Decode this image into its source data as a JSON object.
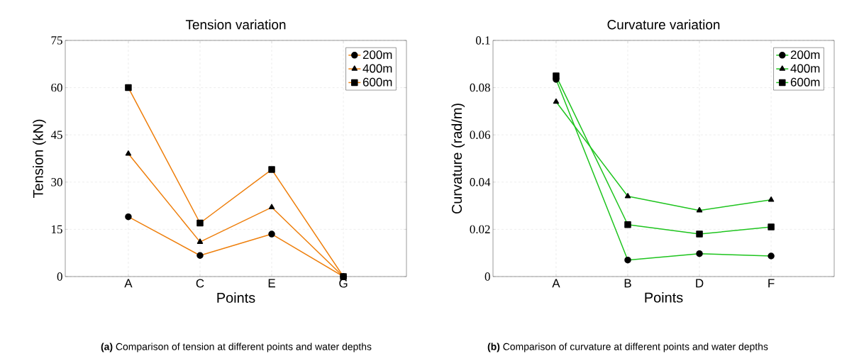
{
  "chart_data": [
    {
      "type": "line",
      "title": "Tension variation",
      "xlabel": "Points",
      "ylabel": "Tension (kN)",
      "categories": [
        "A",
        "C",
        "E",
        "G"
      ],
      "ylim": [
        0,
        75
      ],
      "yticks": [
        0,
        15,
        30,
        45,
        60,
        75
      ],
      "grid": true,
      "legend": "top right",
      "line_style": "solid",
      "series": [
        {
          "name": "200m",
          "color": "#ee7f0c",
          "marker": "circle",
          "values": [
            19,
            6.7,
            13.5,
            0
          ]
        },
        {
          "name": "400m",
          "color": "#ee7f0c",
          "marker": "triangle",
          "values": [
            39,
            11,
            22,
            0
          ]
        },
        {
          "name": "600m",
          "color": "#ee7f0c",
          "marker": "square",
          "values": [
            60,
            17,
            34,
            0
          ]
        }
      ],
      "annotations": [
        "**(a)** Comparison of tension at different points and water depths"
      ]
    },
    {
      "type": "line",
      "title": "Curvature variation",
      "xlabel": "Points",
      "ylabel": "Curvature (rad/m)",
      "categories": [
        "A",
        "B",
        "D",
        "F"
      ],
      "ylim": [
        0,
        0.1
      ],
      "yticks": [
        0,
        0.02,
        0.04,
        0.06,
        0.08,
        0.1
      ],
      "grid": true,
      "legend": "top right",
      "line_style": "solid",
      "series": [
        {
          "name": "200m",
          "color": "#1ec41e",
          "marker": "circle",
          "values": [
            0.0835,
            0.007,
            0.0097,
            0.0087
          ]
        },
        {
          "name": "400m",
          "color": "#1ec41e",
          "marker": "triangle",
          "values": [
            0.074,
            0.034,
            0.028,
            0.0325
          ]
        },
        {
          "name": "600m",
          "color": "#1ec41e",
          "marker": "square",
          "values": [
            0.085,
            0.022,
            0.018,
            0.021
          ]
        }
      ],
      "annotations": [
        "**(b)** Comparison of curvature at different points and water depths"
      ]
    }
  ]
}
